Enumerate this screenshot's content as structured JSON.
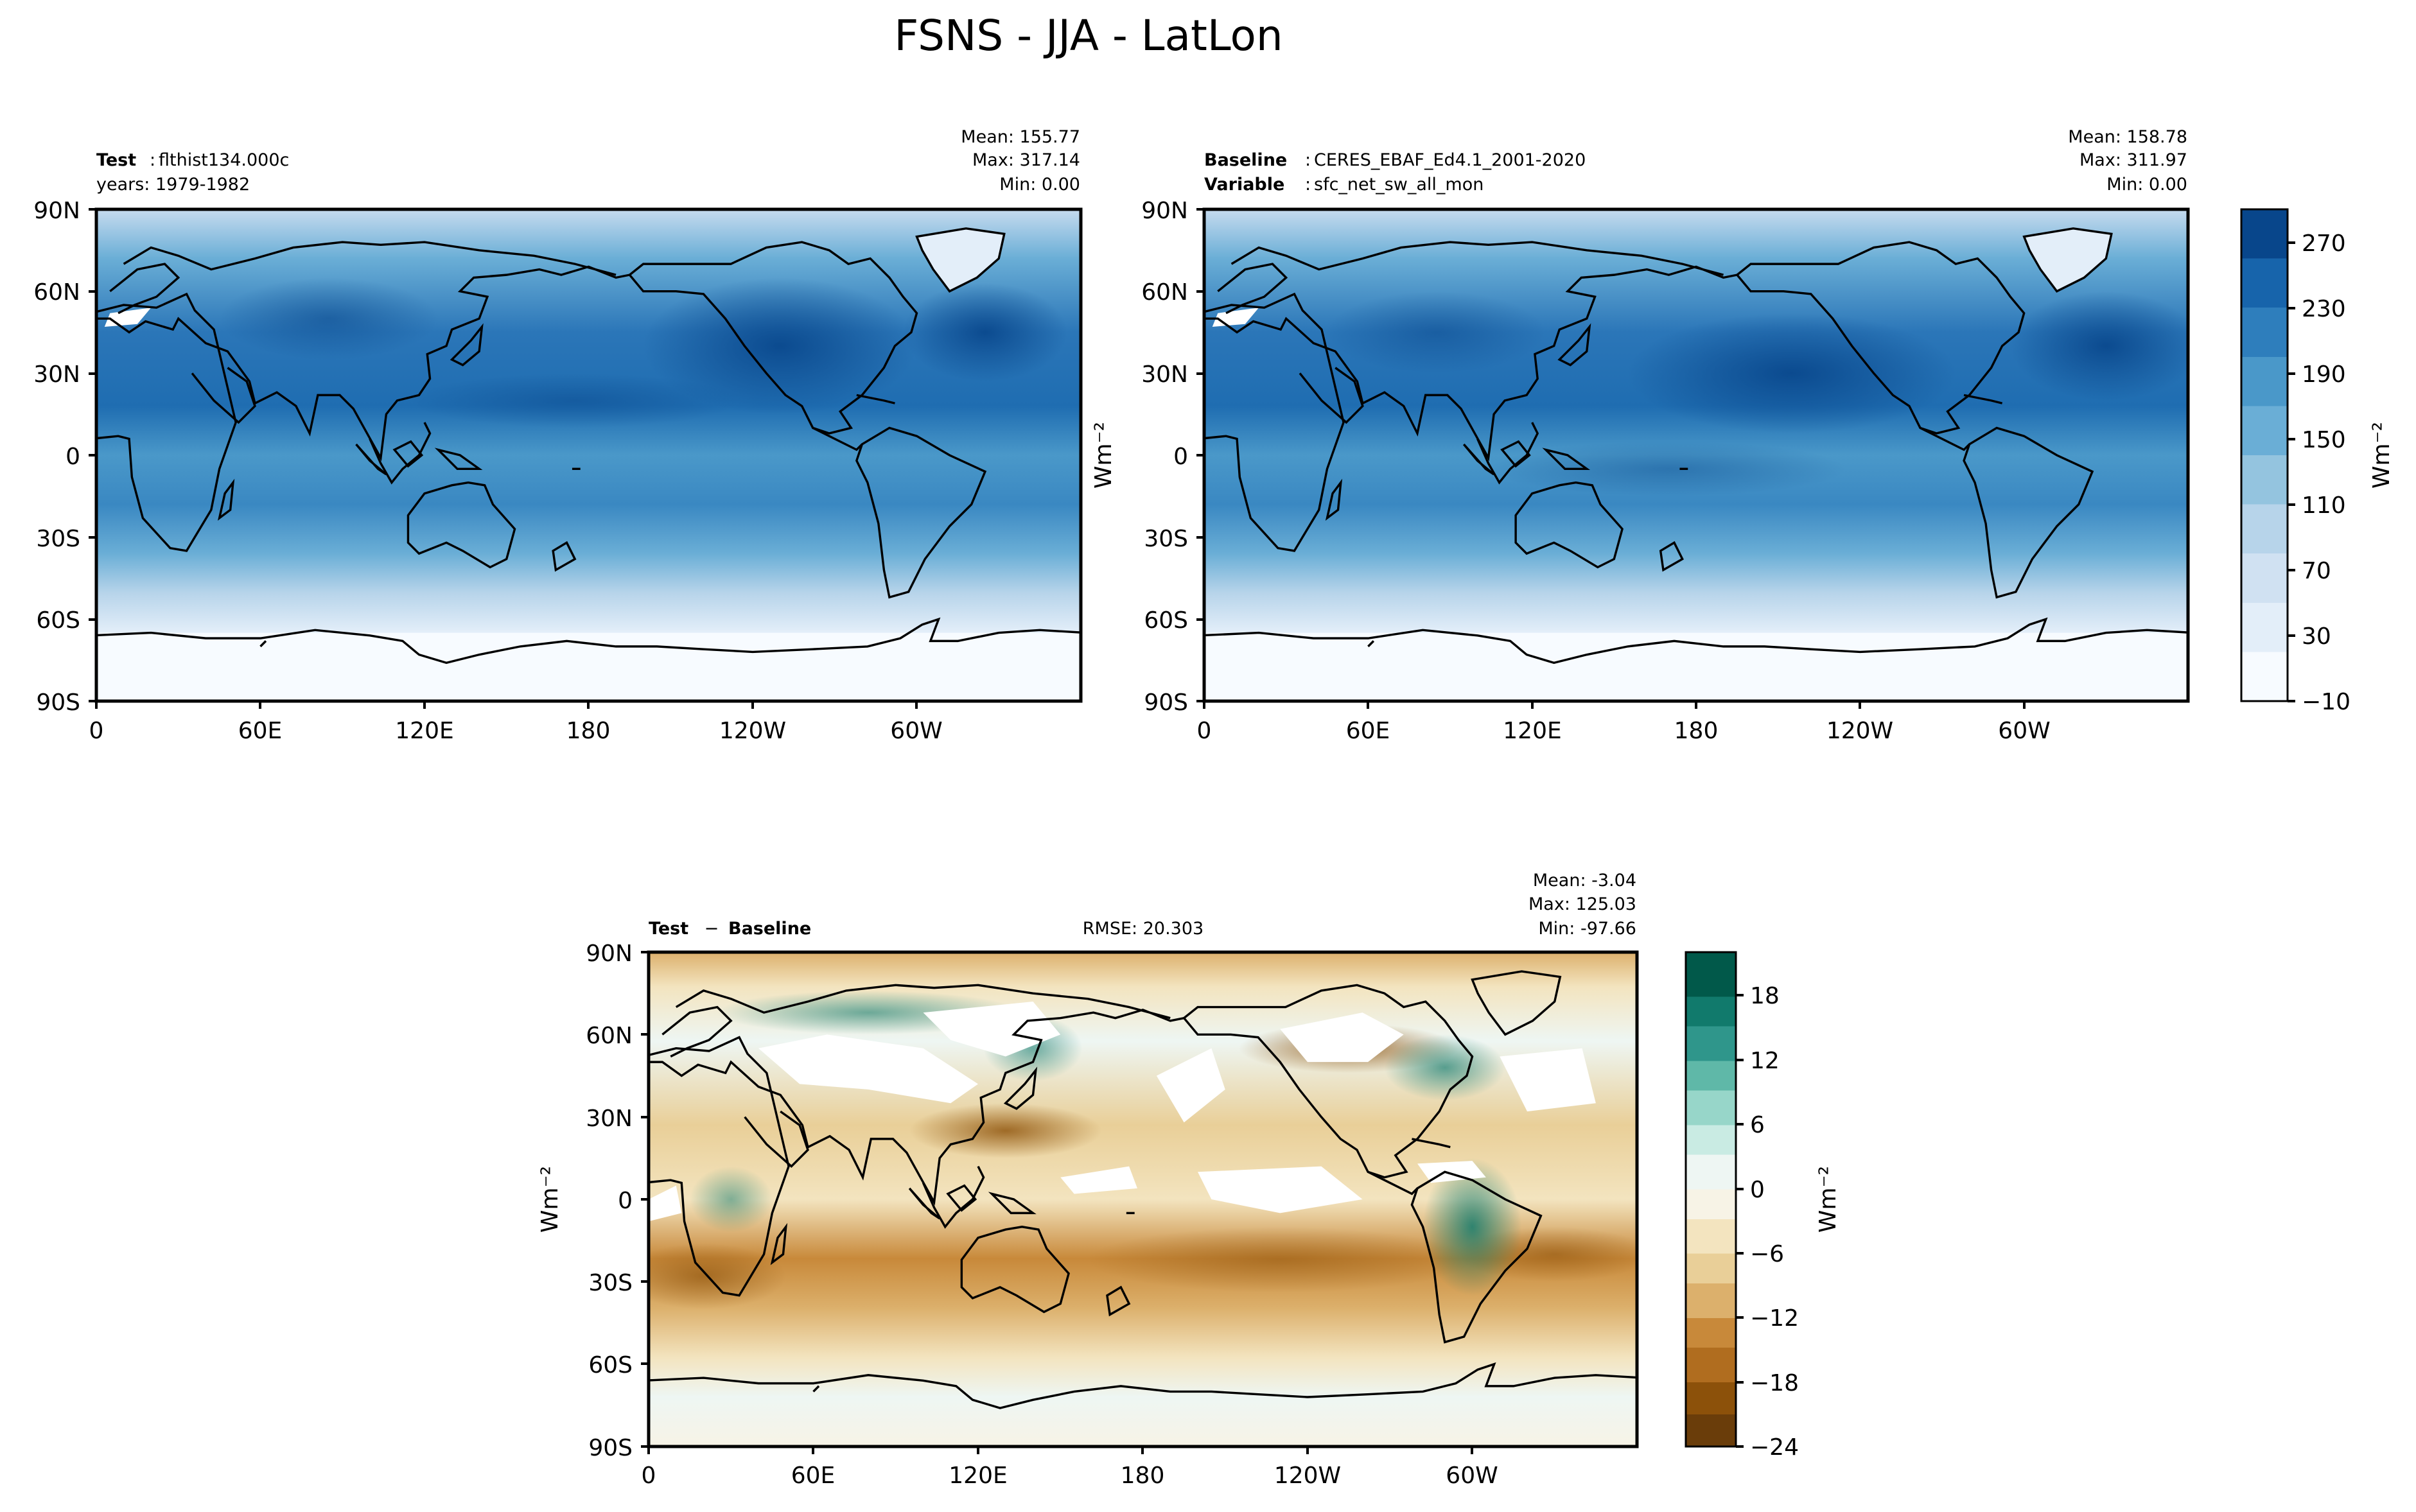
{
  "figure": {
    "title": "FSNS - JJA - LatLon"
  },
  "chart_data": [
    {
      "type": "heatmap",
      "panel": "test",
      "label_key": "Test",
      "label_value": "flthist134.000c",
      "line2_value": "years: 1979-1982",
      "stats": {
        "mean": "Mean: 155.77",
        "max": "Max: 317.14",
        "min": "Min:  0.00"
      },
      "x_ticks": [
        "0",
        "60E",
        "120E",
        "180",
        "120W",
        "60W"
      ],
      "y_ticks": [
        "90N",
        "60N",
        "30N",
        "0",
        "30S",
        "60S",
        "90S"
      ],
      "xlim": [
        0,
        360
      ],
      "ylim": [
        -90,
        90
      ],
      "colormap": "Blues"
    },
    {
      "type": "heatmap",
      "panel": "baseline",
      "label_key": "Baseline",
      "label_value": "CERES_EBAF_Ed4.1_2001-2020",
      "line2_key": "Variable",
      "line2_value": "sfc_net_sw_all_mon",
      "stats": {
        "mean": "Mean: 158.78",
        "max": "Max: 311.97",
        "min": "Min:  0.00"
      },
      "x_ticks": [
        "0",
        "60E",
        "120E",
        "180",
        "120W",
        "60W"
      ],
      "y_ticks": [
        "90N",
        "60N",
        "30N",
        "0",
        "30S",
        "60S",
        "90S"
      ],
      "xlim": [
        0,
        360
      ],
      "ylim": [
        -90,
        90
      ],
      "colormap": "Blues",
      "ylabel": "Wm⁻²",
      "colorbar": {
        "label": "Wm⁻²",
        "ticks": [
          "−10",
          "30",
          "70",
          "110",
          "150",
          "190",
          "230",
          "270"
        ],
        "range": [
          -10,
          290
        ],
        "colors": [
          "#f7fbff",
          "#e3eef9",
          "#d0e1f2",
          "#b7d4ea",
          "#94c4df",
          "#6aaed6",
          "#4a98c9",
          "#2e7ebc",
          "#1764ab",
          "#08468b"
        ]
      }
    },
    {
      "type": "heatmap",
      "panel": "difference",
      "label_key": "Test",
      "label_op": " − ",
      "label_value": "Baseline",
      "rmse": "RMSE: 20.303",
      "stats": {
        "mean": "Mean: -3.04",
        "max": "Max: 125.03",
        "min": "Min: -97.66"
      },
      "x_ticks": [
        "0",
        "60E",
        "120E",
        "180",
        "120W",
        "60W"
      ],
      "y_ticks": [
        "90N",
        "60N",
        "30N",
        "0",
        "30S",
        "60S",
        "90S"
      ],
      "xlim": [
        0,
        360
      ],
      "ylim": [
        -90,
        90
      ],
      "colormap": "BrBG",
      "ylabel": "Wm⁻²",
      "colorbar": {
        "label": "Wm⁻²",
        "ticks": [
          "−24",
          "−18",
          "−12",
          "−6",
          "0",
          "6",
          "12",
          "18"
        ],
        "range": [
          -24,
          22
        ],
        "colors": [
          "#6a3d0a",
          "#8c510a",
          "#b06d1f",
          "#d09a4a",
          "#e4c589",
          "#f3e4bf",
          "#f7f5ea",
          "#d9efec",
          "#a8ddd4",
          "#6dc0b1",
          "#35978f",
          "#0e7466",
          "#01594a"
        ]
      }
    }
  ]
}
